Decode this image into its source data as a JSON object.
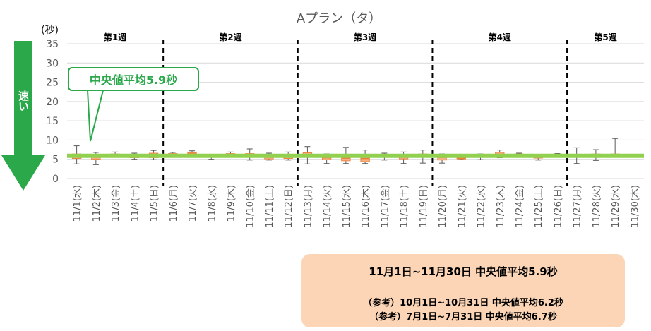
{
  "chart_data": {
    "type": "box",
    "title": "Aプラン（タ）",
    "yunit": "(秒)",
    "ylim": [
      0,
      35
    ],
    "yticks": [
      0,
      5,
      10,
      15,
      20,
      25,
      30,
      35
    ],
    "categories": [
      "11/1(水)",
      "11/2(木)",
      "11/3(金)",
      "11/4(土)",
      "11/5(日)",
      "11/6(月)",
      "11/7(火)",
      "11/8(水)",
      "11/9(木)",
      "11/10(金)",
      "11/11(土)",
      "11/12(日)",
      "11/13(月)",
      "11/14(火)",
      "11/15(水)",
      "11/16(木)",
      "11/17(金)",
      "11/18(土)",
      "11/19(日)",
      "11/20(月)",
      "11/21(火)",
      "11/22(水)",
      "11/23(木)",
      "11/24(金)",
      "11/25(土)",
      "11/26(日)",
      "11/27(月)",
      "11/28(火)",
      "11/29(水)",
      "11/30(木)"
    ],
    "boxes": [
      {
        "min": 3.8,
        "q1": 5.2,
        "median": 6.0,
        "q3": 6.4,
        "max": 8.5
      },
      {
        "min": 3.6,
        "q1": 5.0,
        "median": 5.8,
        "q3": 6.3,
        "max": 6.8
      },
      {
        "min": 5.5,
        "q1": 5.9,
        "median": 6.1,
        "q3": 6.4,
        "max": 6.9
      },
      {
        "min": 5.0,
        "q1": 5.4,
        "median": 5.8,
        "q3": 6.2,
        "max": 6.6
      },
      {
        "min": 4.9,
        "q1": 5.4,
        "median": 5.9,
        "q3": 6.6,
        "max": 7.3
      },
      {
        "min": 5.9,
        "q1": 6.1,
        "median": 6.3,
        "q3": 6.5,
        "max": 6.8
      },
      {
        "min": 6.0,
        "q1": 6.3,
        "median": 6.6,
        "q3": 6.9,
        "max": 7.2
      },
      {
        "min": 5.0,
        "q1": 5.6,
        "median": 5.9,
        "q3": 6.1,
        "max": 6.3
      },
      {
        "min": 5.8,
        "q1": 6.0,
        "median": 6.2,
        "q3": 6.5,
        "max": 6.9
      },
      {
        "min": 4.8,
        "q1": 5.9,
        "median": 6.2,
        "q3": 6.5,
        "max": 7.7
      },
      {
        "min": 4.8,
        "q1": 5.1,
        "median": 5.6,
        "q3": 6.0,
        "max": 6.6
      },
      {
        "min": 4.8,
        "q1": 5.2,
        "median": 5.7,
        "q3": 6.1,
        "max": 6.9
      },
      {
        "min": 3.8,
        "q1": 5.7,
        "median": 6.2,
        "q3": 6.7,
        "max": 8.3
      },
      {
        "min": 3.9,
        "q1": 4.9,
        "median": 5.4,
        "q3": 5.9,
        "max": 6.4
      },
      {
        "min": 3.9,
        "q1": 4.6,
        "median": 5.3,
        "q3": 5.9,
        "max": 8.1
      },
      {
        "min": 3.9,
        "q1": 4.4,
        "median": 5.2,
        "q3": 5.9,
        "max": 7.4
      },
      {
        "min": 4.8,
        "q1": 5.5,
        "median": 5.8,
        "q3": 6.1,
        "max": 6.6
      },
      {
        "min": 3.9,
        "q1": 5.1,
        "median": 5.6,
        "q3": 6.1,
        "max": 6.9
      },
      {
        "min": 4.0,
        "q1": 5.9,
        "median": 6.2,
        "q3": 6.4,
        "max": 7.4
      },
      {
        "min": 4.0,
        "q1": 4.8,
        "median": 5.5,
        "q3": 5.9,
        "max": 6.4
      },
      {
        "min": 4.9,
        "q1": 5.1,
        "median": 5.3,
        "q3": 5.6,
        "max": 5.9
      },
      {
        "min": 4.9,
        "q1": 5.5,
        "median": 5.9,
        "q3": 6.1,
        "max": 6.4
      },
      {
        "min": 5.4,
        "q1": 5.8,
        "median": 6.3,
        "q3": 6.8,
        "max": 7.4
      },
      {
        "min": 5.8,
        "q1": 6.0,
        "median": 6.2,
        "q3": 6.4,
        "max": 6.6
      },
      {
        "min": 4.8,
        "q1": 5.3,
        "median": 5.6,
        "q3": 5.9,
        "max": 6.1
      },
      {
        "min": 5.7,
        "q1": 5.9,
        "median": 6.1,
        "q3": 6.3,
        "max": 6.5
      },
      {
        "min": 3.9,
        "q1": 5.8,
        "median": 6.0,
        "q3": 6.3,
        "max": 8.0
      },
      {
        "min": 4.7,
        "q1": 5.6,
        "median": 6.0,
        "q3": 6.4,
        "max": 7.5
      },
      {
        "min": 5.7,
        "q1": 5.9,
        "median": 6.1,
        "q3": 6.4,
        "max": 10.4
      },
      {
        "min": 5.8,
        "q1": 5.9,
        "median": 6.0,
        "q3": 6.1,
        "max": 6.2
      }
    ],
    "median_line": 5.9,
    "weeks": [
      {
        "label": "第1週",
        "from": 0,
        "to": 4
      },
      {
        "label": "第2週",
        "from": 5,
        "to": 11
      },
      {
        "label": "第3週",
        "from": 12,
        "to": 18
      },
      {
        "label": "第4週",
        "from": 19,
        "to": 25
      },
      {
        "label": "第5週",
        "from": 26,
        "to": 29
      }
    ],
    "colors": {
      "box": "#f4b183",
      "box_edge": "#ed7d31",
      "median_line": "#92d050",
      "whisker": "#595959",
      "axis_text": "#595959"
    }
  },
  "speed_label": "速い",
  "callout": "中央値平均5.9秒",
  "summary": {
    "main": "11月1日~11月30日 中央値平均5.9秒",
    "ref1": "（参考）10月1日~10月31日 中央値平均6.2秒",
    "ref2": "（参考）7月1日~7月31日 中央値平均6.7秒"
  }
}
